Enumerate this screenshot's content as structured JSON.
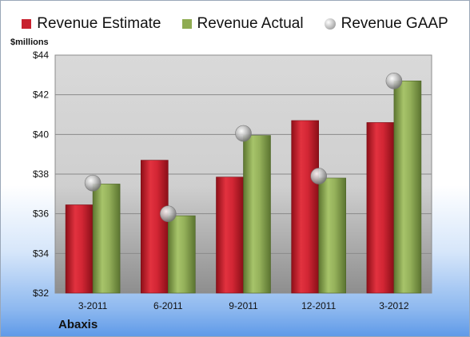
{
  "chart_data": {
    "type": "bar",
    "units_label": "$millions",
    "company": "Abaxis",
    "categories": [
      "3-2011",
      "6-2011",
      "9-2011",
      "12-2011",
      "3-2012"
    ],
    "series": [
      {
        "name": "Revenue Estimate",
        "kind": "bar",
        "color": "#c8212e",
        "values": [
          36.45,
          38.7,
          37.85,
          40.7,
          40.6
        ]
      },
      {
        "name": "Revenue Actual",
        "kind": "bar",
        "color": "#8fac52",
        "values": [
          37.5,
          35.9,
          39.95,
          37.8,
          42.7
        ]
      },
      {
        "name": "Revenue GAAP",
        "kind": "point",
        "color": "#b9b9b9",
        "values": [
          37.55,
          36.0,
          40.05,
          37.9,
          42.7
        ]
      }
    ],
    "ylim": [
      32,
      44
    ],
    "yticks": [
      32,
      34,
      36,
      38,
      40,
      42,
      44
    ],
    "ytick_labels": [
      "$32",
      "$34",
      "$36",
      "$38",
      "$40",
      "$42",
      "$44"
    ],
    "grid": true,
    "legend_position": "top"
  }
}
